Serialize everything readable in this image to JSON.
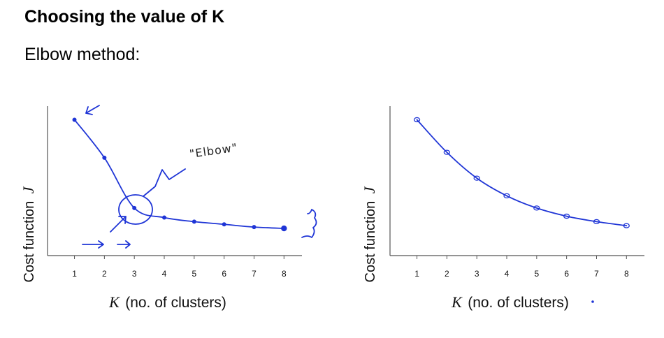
{
  "slide": {
    "title": "Choosing the value of K",
    "subtitle": "Elbow method:"
  },
  "annotation": {
    "elbow": "\"Elbow\""
  },
  "chart_data": [
    {
      "type": "line",
      "x": [
        1,
        2,
        3,
        4,
        5,
        6,
        7,
        8
      ],
      "values": [
        1.0,
        0.72,
        0.35,
        0.28,
        0.25,
        0.23,
        0.21,
        0.2
      ],
      "xlabel_var": "K",
      "xlabel_rest": "(no. of clusters)",
      "ylabel_text": "Cost function",
      "ylabel_var": "J",
      "xticks": [
        1,
        2,
        3,
        4,
        5,
        6,
        7,
        8
      ],
      "xlim": [
        0.1,
        8.6
      ],
      "ylim": [
        0,
        1.1
      ],
      "annotated_elbow_x": 3,
      "accent": "#1f35d6"
    },
    {
      "type": "line",
      "x": [
        1,
        2,
        3,
        4,
        5,
        6,
        7,
        8
      ],
      "values": [
        1.0,
        0.76,
        0.57,
        0.44,
        0.35,
        0.29,
        0.25,
        0.22
      ],
      "xlabel_var": "K",
      "xlabel_rest": "(no. of clusters)",
      "ylabel_text": "Cost function",
      "ylabel_var": "J",
      "xticks": [
        1,
        2,
        3,
        4,
        5,
        6,
        7,
        8
      ],
      "xlim": [
        0.1,
        8.6
      ],
      "ylim": [
        0,
        1.1
      ],
      "accent": "#1f35d6"
    }
  ]
}
